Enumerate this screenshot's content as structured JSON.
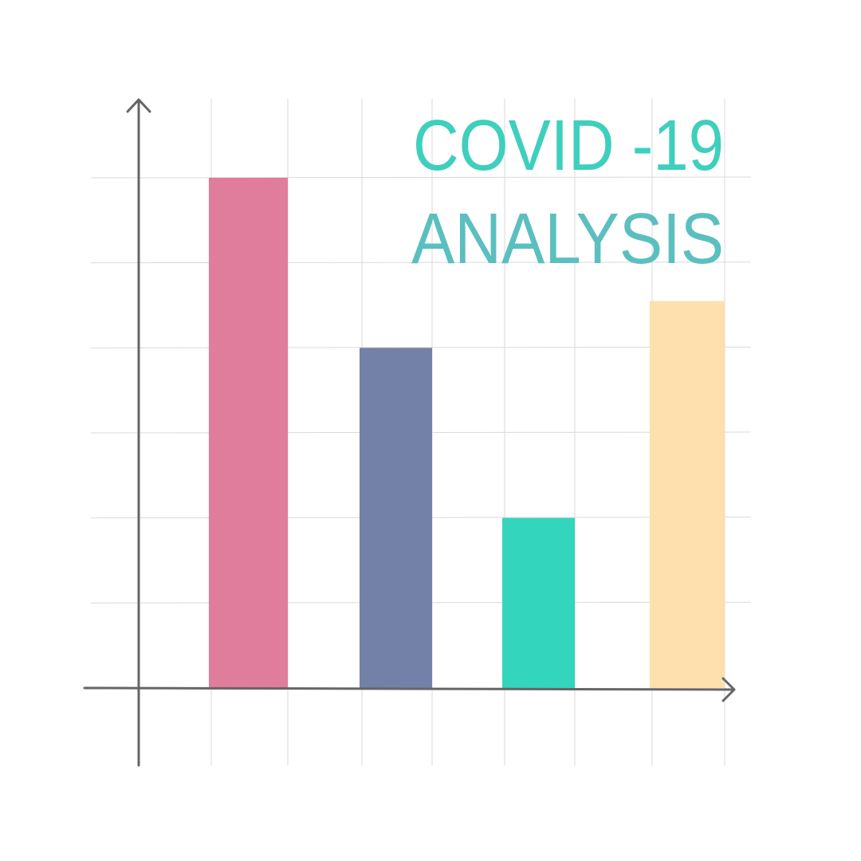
{
  "title": {
    "line1": "COVID -19",
    "line2": "ANALYSIS"
  },
  "colors": {
    "title_line1": "#3ecfbd",
    "title_line2": "#5bbfbf",
    "axis": "#666666",
    "grid": "#d9d9d9"
  },
  "chart_data": {
    "type": "bar",
    "categories": [
      "",
      "",
      "",
      ""
    ],
    "values": [
      6,
      4,
      2,
      4.55
    ],
    "ylim": [
      0,
      6.9
    ],
    "grid": true,
    "bar_colors": [
      "#e07c9c",
      "#7381a8",
      "#33d6bd",
      "#fde0ae"
    ],
    "title": "COVID -19 ANALYSIS",
    "xlabel": "",
    "ylabel": ""
  }
}
